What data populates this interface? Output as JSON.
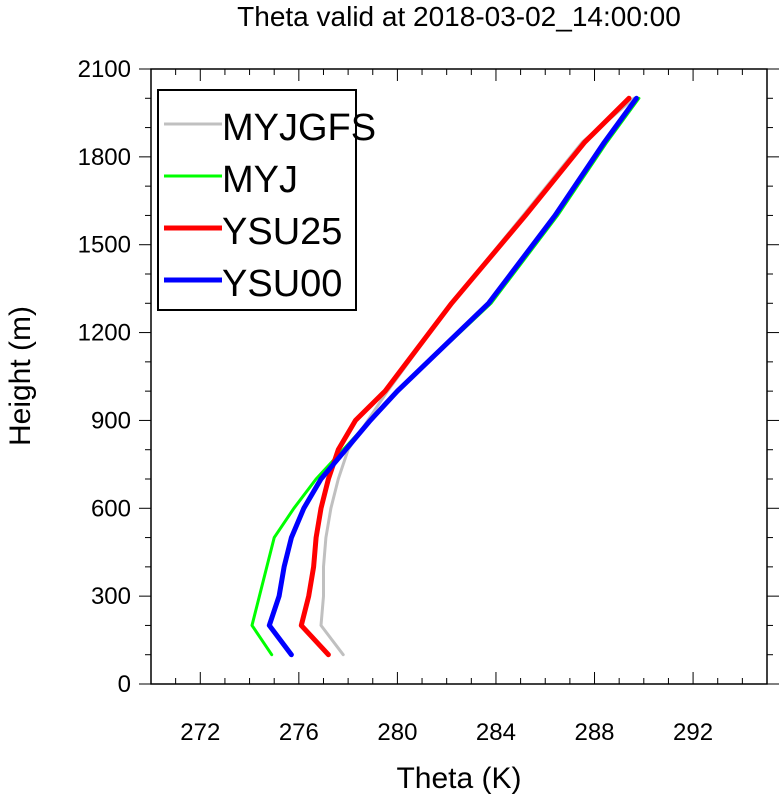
{
  "chart_data": {
    "type": "line",
    "title": "Theta valid at 2018-03-02_14:00:00",
    "xlabel": "Theta (K)",
    "ylabel": "Height (m)",
    "xlim": [
      270,
      295
    ],
    "ylim": [
      0,
      2100
    ],
    "x_ticks": [
      272,
      276,
      280,
      284,
      288,
      292
    ],
    "x_tick_labels": [
      "272",
      "276",
      "280",
      "284",
      "288",
      "292"
    ],
    "y_ticks": [
      0,
      300,
      600,
      900,
      1200,
      1500,
      1800,
      2100
    ],
    "y_tick_labels": [
      "0",
      "300",
      "600",
      "900",
      "1200",
      "1500",
      "1800",
      "2100"
    ],
    "legend_position": "top-left",
    "series": [
      {
        "name": "MYJGFS",
        "color": "#c0c0c0",
        "points": [
          [
            277.8,
            100
          ],
          [
            276.9,
            200
          ],
          [
            277.0,
            300
          ],
          [
            277.0,
            400
          ],
          [
            277.1,
            500
          ],
          [
            277.3,
            600
          ],
          [
            277.6,
            700
          ],
          [
            278.0,
            800
          ],
          [
            278.8,
            900
          ],
          [
            279.6,
            1000
          ],
          [
            282.2,
            1300
          ],
          [
            285.1,
            1600
          ],
          [
            287.5,
            1850
          ],
          [
            289.6,
            2000
          ]
        ]
      },
      {
        "name": "MYJ",
        "color": "#00ff00",
        "points": [
          [
            274.9,
            100
          ],
          [
            274.1,
            200
          ],
          [
            274.4,
            300
          ],
          [
            274.7,
            400
          ],
          [
            275.0,
            500
          ],
          [
            275.8,
            600
          ],
          [
            276.7,
            700
          ],
          [
            277.8,
            800
          ],
          [
            278.9,
            900
          ],
          [
            280.0,
            1000
          ],
          [
            283.8,
            1300
          ],
          [
            286.5,
            1600
          ],
          [
            288.5,
            1850
          ],
          [
            289.8,
            2000
          ]
        ]
      },
      {
        "name": "YSU25",
        "color": "#ff0000",
        "points": [
          [
            277.2,
            100
          ],
          [
            276.1,
            200
          ],
          [
            276.4,
            300
          ],
          [
            276.6,
            400
          ],
          [
            276.7,
            500
          ],
          [
            276.9,
            600
          ],
          [
            277.2,
            700
          ],
          [
            277.6,
            800
          ],
          [
            278.3,
            900
          ],
          [
            279.5,
            1000
          ],
          [
            282.2,
            1300
          ],
          [
            285.2,
            1600
          ],
          [
            287.6,
            1850
          ],
          [
            289.4,
            2000
          ]
        ]
      },
      {
        "name": "YSU00",
        "color": "#0000ff",
        "points": [
          [
            275.7,
            100
          ],
          [
            274.8,
            200
          ],
          [
            275.2,
            300
          ],
          [
            275.4,
            400
          ],
          [
            275.7,
            500
          ],
          [
            276.2,
            600
          ],
          [
            276.9,
            700
          ],
          [
            277.9,
            800
          ],
          [
            278.9,
            900
          ],
          [
            280.0,
            1000
          ],
          [
            283.7,
            1300
          ],
          [
            286.4,
            1600
          ],
          [
            288.4,
            1850
          ],
          [
            289.7,
            2000
          ]
        ]
      }
    ]
  }
}
